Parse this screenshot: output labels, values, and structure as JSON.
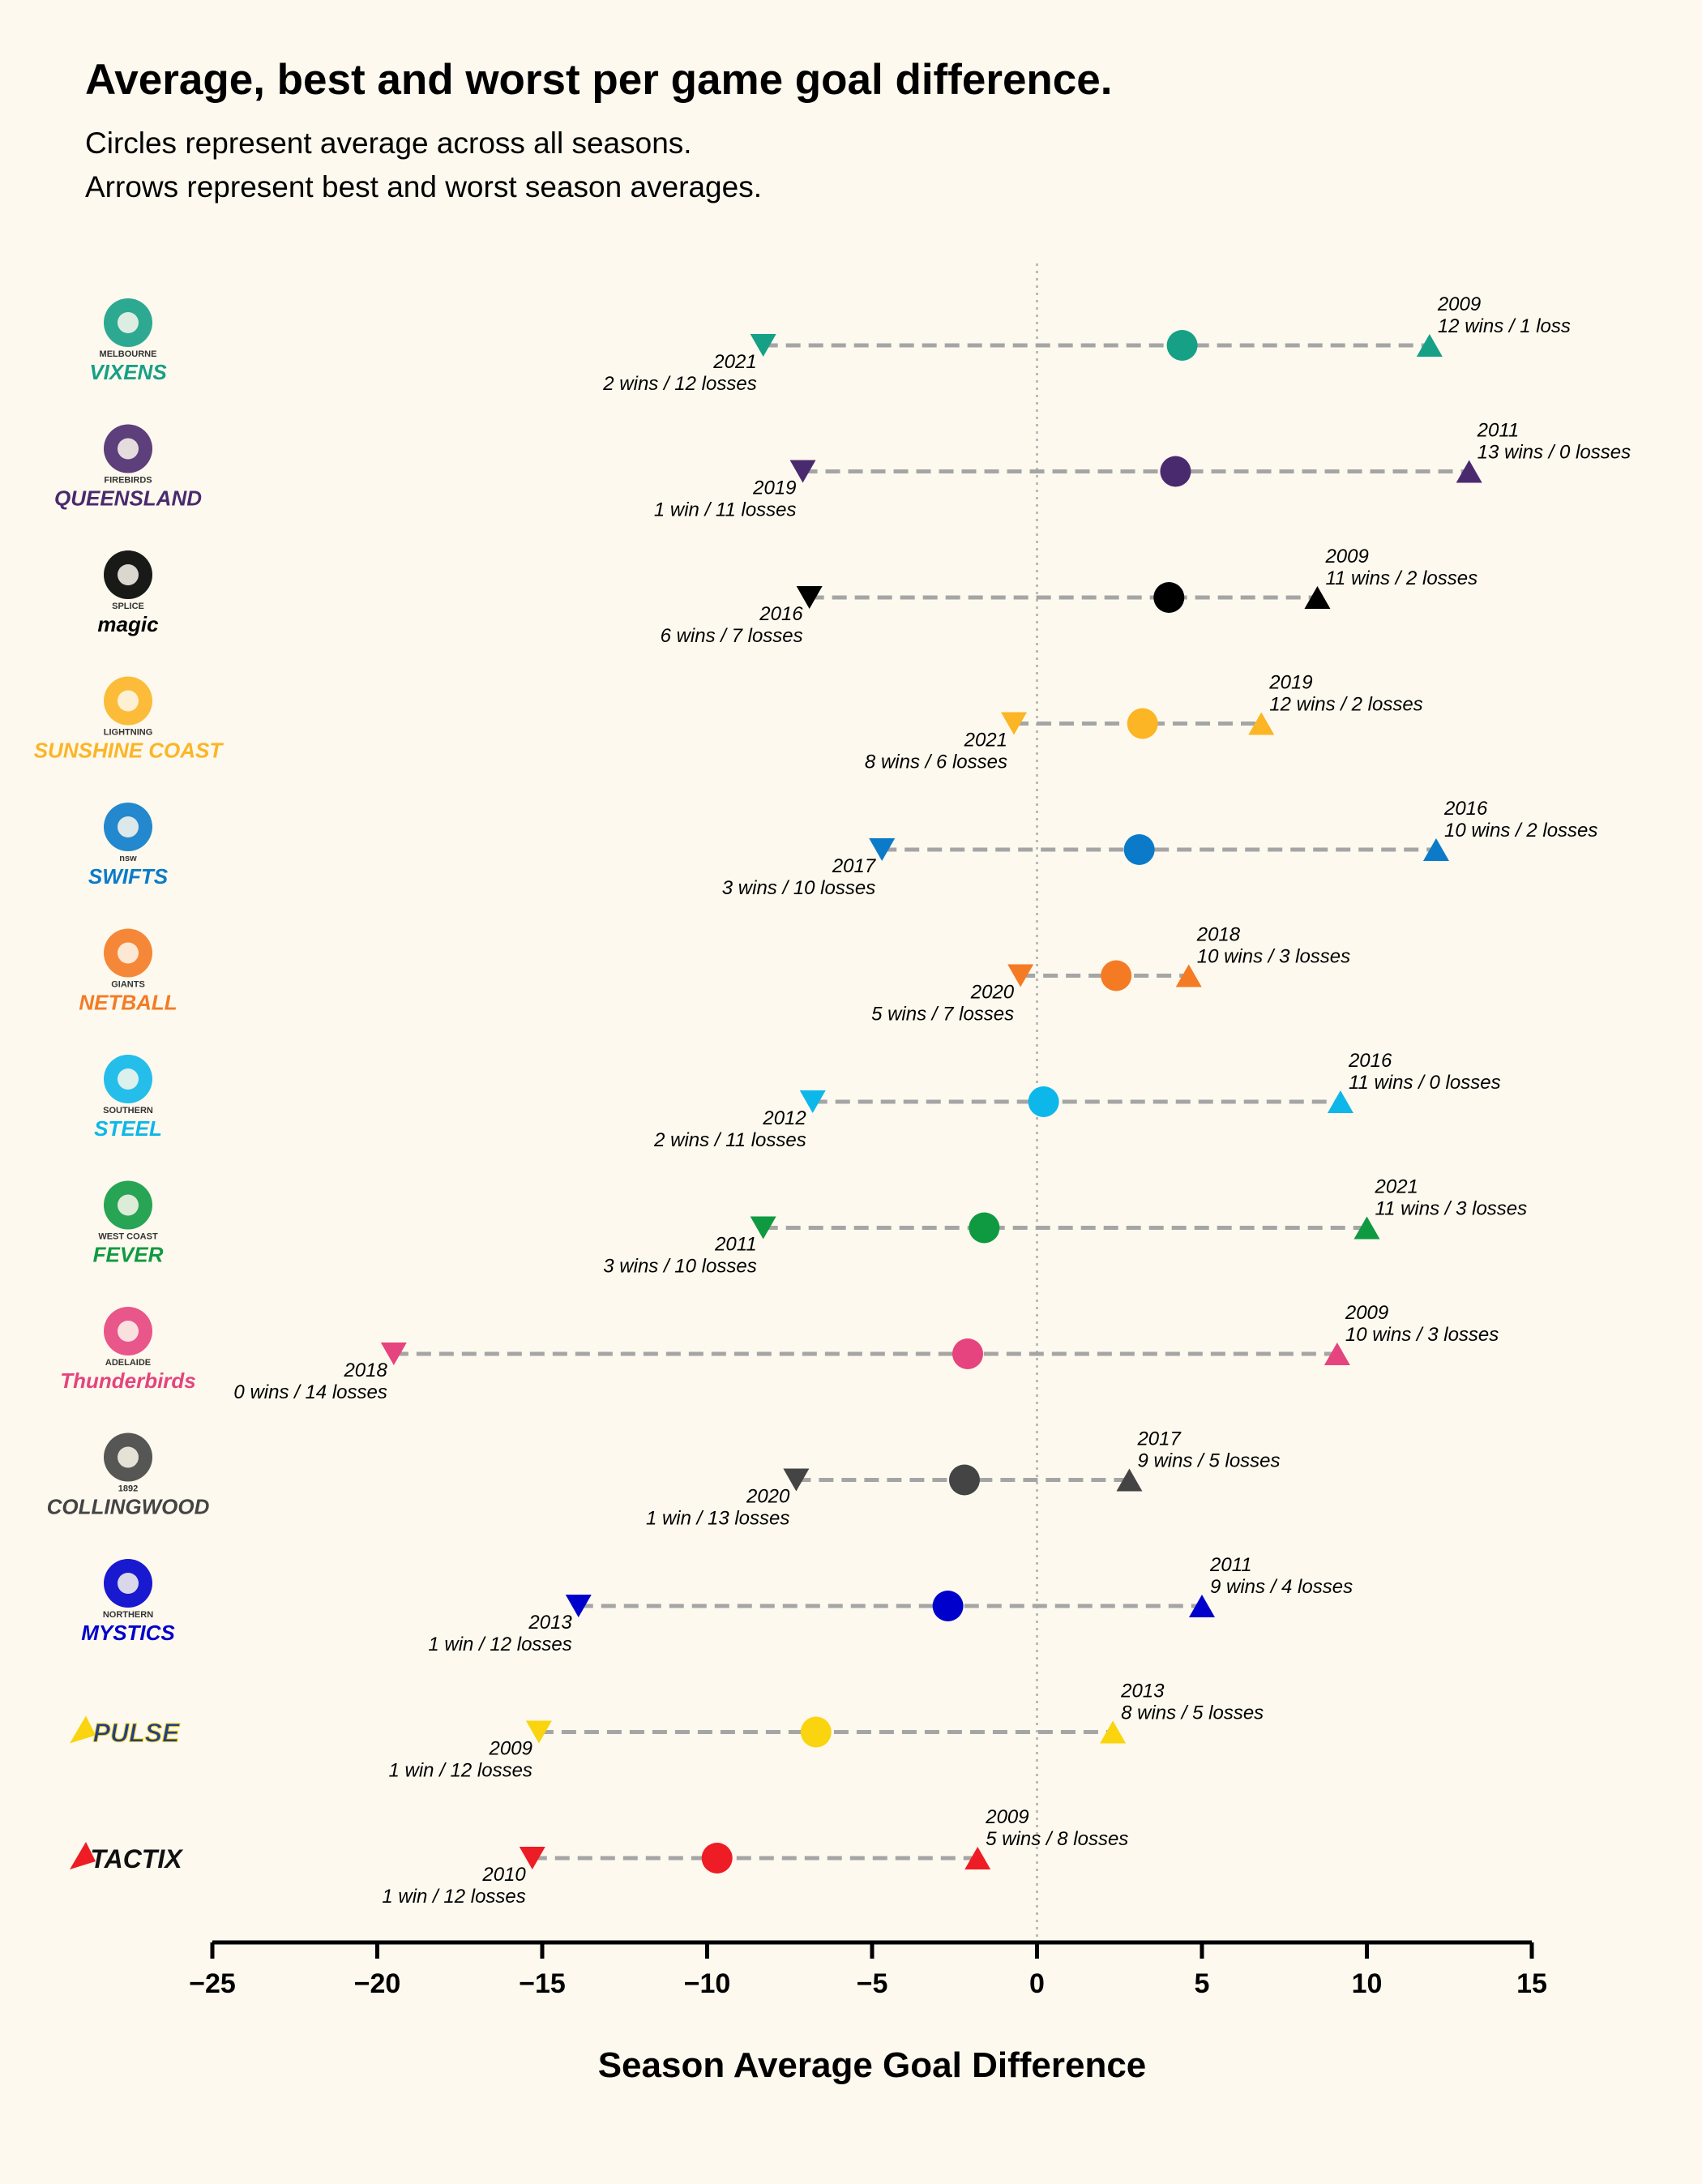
{
  "title": "Average, best and worst per game goal difference.",
  "subtitle_lines": [
    "Circles represent average across all seasons.",
    "Arrows represent best and worst season averages."
  ],
  "chart_data": {
    "type": "dot-range",
    "xlabel": "Season Average Goal Difference",
    "xlim": [
      -25,
      15
    ],
    "xticks": [
      -25,
      -20,
      -15,
      -10,
      -5,
      0,
      5,
      10,
      15
    ],
    "xtick_labels": [
      "−25",
      "−20",
      "−15",
      "−10",
      "−5",
      "0",
      "5",
      "10",
      "15"
    ],
    "reference_line_x": 0,
    "teams": [
      {
        "logo_text": [
          "MELBOURNE",
          "VIXENS"
        ],
        "logo_icon": "fox-icon",
        "color": "#16a086",
        "avg": 4.4,
        "worst": {
          "value": -8.3,
          "year": "2021",
          "record": "2 wins / 12 losses"
        },
        "best": {
          "value": 11.9,
          "year": "2009",
          "record": "12 wins / 1 loss"
        }
      },
      {
        "logo_text": [
          "FIREBIRDS",
          "QUEENSLAND"
        ],
        "logo_icon": "firebird-icon",
        "color": "#4a2a6e",
        "avg": 4.2,
        "worst": {
          "value": -7.1,
          "year": "2019",
          "record": "1 win / 11 losses"
        },
        "best": {
          "value": 13.1,
          "year": "2011",
          "record": "13 wins / 0 losses"
        }
      },
      {
        "logo_text": [
          "SPLICE",
          "magic"
        ],
        "logo_icon": "heart-icon",
        "color": "#000000",
        "avg": 4.0,
        "worst": {
          "value": -6.9,
          "year": "2016",
          "record": "6 wins / 7 losses"
        },
        "best": {
          "value": 8.5,
          "year": "2009",
          "record": "11 wins / 2 losses"
        }
      },
      {
        "logo_text": [
          "LIGHTNING",
          "SUNSHINE COAST"
        ],
        "logo_icon": "lightning-ball-icon",
        "color": "#fcb525",
        "avg": 3.2,
        "worst": {
          "value": -0.7,
          "year": "2021",
          "record": "8 wins / 6 losses"
        },
        "best": {
          "value": 6.8,
          "year": "2019",
          "record": "12 wins / 2 losses"
        }
      },
      {
        "logo_text": [
          "nsw",
          "SWIFTS"
        ],
        "logo_icon": "swifts-s-icon",
        "color": "#0b7bc9",
        "avg": 3.1,
        "worst": {
          "value": -4.7,
          "year": "2017",
          "record": "3 wins / 10 losses"
        },
        "best": {
          "value": 12.1,
          "year": "2016",
          "record": "10 wins / 2 losses"
        }
      },
      {
        "logo_text": [
          "GIANTS",
          "NETBALL"
        ],
        "logo_icon": "giants-g-icon",
        "color": "#f47b24",
        "avg": 2.4,
        "worst": {
          "value": -0.5,
          "year": "2020",
          "record": "5 wins / 7 losses"
        },
        "best": {
          "value": 4.6,
          "year": "2018",
          "record": "10 wins / 3 losses"
        }
      },
      {
        "logo_text": [
          "SOUTHERN",
          "STEEL"
        ],
        "logo_icon": "steel-swoosh-icon",
        "color": "#0db7ea",
        "avg": 0.2,
        "worst": {
          "value": -6.8,
          "year": "2012",
          "record": "2 wins / 11 losses"
        },
        "best": {
          "value": 9.2,
          "year": "2016",
          "record": "11 wins / 0 losses"
        }
      },
      {
        "logo_text": [
          "WEST COAST",
          "FEVER"
        ],
        "logo_icon": "fever-icon",
        "color": "#0f9a42",
        "avg": -1.6,
        "worst": {
          "value": -8.3,
          "year": "2011",
          "record": "3 wins / 10 losses"
        },
        "best": {
          "value": 10.0,
          "year": "2021",
          "record": "11 wins / 3 losses"
        }
      },
      {
        "logo_text": [
          "ADELAIDE",
          "Thunderbirds"
        ],
        "logo_icon": "thunderbird-icon",
        "color": "#e5447e",
        "avg": -2.1,
        "worst": {
          "value": -19.5,
          "year": "2018",
          "record": "0 wins / 14 losses"
        },
        "best": {
          "value": 9.1,
          "year": "2009",
          "record": "10 wins / 3 losses"
        }
      },
      {
        "logo_text": [
          "1892",
          "COLLINGWOOD"
        ],
        "logo_icon": "magpie-icon",
        "color": "#444444",
        "avg": -2.2,
        "worst": {
          "value": -7.3,
          "year": "2020",
          "record": "1 win / 13 losses"
        },
        "best": {
          "value": 2.8,
          "year": "2017",
          "record": "9 wins / 5 losses"
        }
      },
      {
        "logo_text": [
          "NORTHERN",
          "MYSTICS"
        ],
        "logo_icon": "mystics-icon",
        "color": "#0000cc",
        "avg": -2.7,
        "worst": {
          "value": -13.9,
          "year": "2013",
          "record": "1 win / 12 losses"
        },
        "best": {
          "value": 5.0,
          "year": "2011",
          "record": "9 wins / 4 losses"
        }
      },
      {
        "logo_text": [
          "PULSE"
        ],
        "logo_icon": "pulse-wave-icon",
        "color": "#f9d40f",
        "avg": -6.7,
        "worst": {
          "value": -15.1,
          "year": "2009",
          "record": "1 win / 12 losses"
        },
        "best": {
          "value": 2.3,
          "year": "2013",
          "record": "8 wins / 5 losses"
        }
      },
      {
        "logo_text": [
          "TACTIX"
        ],
        "logo_icon": "tactix-figure-icon",
        "color": "#ee1c24",
        "avg": -9.7,
        "worst": {
          "value": -15.3,
          "year": "2010",
          "record": "1 win / 12 losses"
        },
        "best": {
          "value": -1.8,
          "year": "2009",
          "record": "5 wins / 8 losses"
        }
      }
    ]
  }
}
